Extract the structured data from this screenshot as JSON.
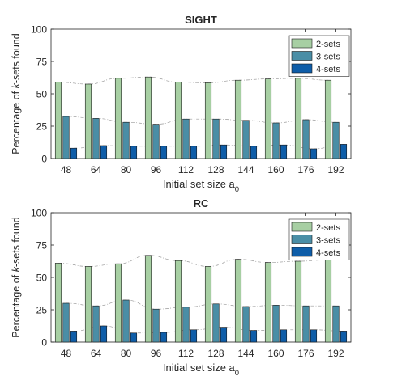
{
  "chart_data": [
    {
      "type": "bar",
      "title": "SIGHT",
      "xlabel": "Initial set size a",
      "xlabel_sub": "0",
      "ylabel_prefix": "Percentage of ",
      "ylabel_italic": "k",
      "ylabel_suffix": "-sets found",
      "ylim": [
        0,
        100
      ],
      "yticks": [
        0,
        25,
        50,
        75,
        100
      ],
      "grid": false,
      "legend_position": "top-right",
      "categories": [
        "48",
        "64",
        "80",
        "96",
        "112",
        "128",
        "144",
        "160",
        "176",
        "192"
      ],
      "series": [
        {
          "name": "2-sets",
          "color": "#a7cfa3",
          "values": [
            59,
            57.5,
            62,
            63,
            59,
            58.5,
            60.5,
            61.5,
            62,
            60.5
          ]
        },
        {
          "name": "3-sets",
          "color": "#4a8ea6",
          "values": [
            32.5,
            31,
            28,
            26.5,
            30.5,
            30.5,
            29.5,
            27.5,
            30,
            28
          ]
        },
        {
          "name": "4-sets",
          "color": "#0e5da8",
          "values": [
            8,
            10,
            9.5,
            9.5,
            9.5,
            10.5,
            9.5,
            10.5,
            7.5,
            11
          ]
        }
      ]
    },
    {
      "type": "bar",
      "title": "RC",
      "xlabel": "Initial set size a",
      "xlabel_sub": "0",
      "ylabel_prefix": "Percentage of ",
      "ylabel_italic": "k",
      "ylabel_suffix": "-sets found",
      "ylim": [
        0,
        100
      ],
      "yticks": [
        0,
        25,
        50,
        75,
        100
      ],
      "grid": false,
      "legend_position": "top-right",
      "categories": [
        "48",
        "64",
        "80",
        "96",
        "112",
        "128",
        "144",
        "160",
        "176",
        "192"
      ],
      "series": [
        {
          "name": "2-sets",
          "color": "#a7cfa3",
          "values": [
            61,
            58.5,
            60.5,
            67,
            63,
            58.5,
            64,
            61.5,
            62.5,
            63.5
          ]
        },
        {
          "name": "3-sets",
          "color": "#4a8ea6",
          "values": [
            30,
            28,
            32.5,
            25.5,
            27,
            29.5,
            27.5,
            28.5,
            28,
            28
          ]
        },
        {
          "name": "4-sets",
          "color": "#0e5da8",
          "values": [
            8.5,
            12.5,
            7,
            7.5,
            9.5,
            11.5,
            9,
            9.5,
            9.5,
            8.5
          ]
        }
      ]
    }
  ]
}
